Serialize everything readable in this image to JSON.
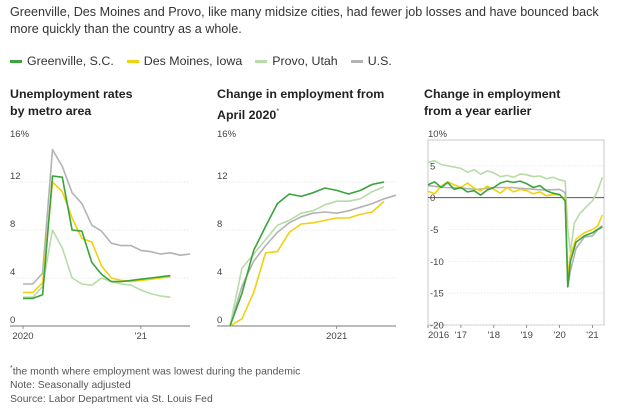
{
  "intro_text": "Greenville, Des Moines and Provo, like many midsize cities, had fewer job losses and have bounced back more quickly than the country as a whole.",
  "legend": [
    {
      "name": "Greenville, S.C.",
      "color": "#3aa33a"
    },
    {
      "name": "Des Moines, Iowa",
      "color": "#f2d10f"
    },
    {
      "name": "Provo, Utah",
      "color": "#b7dca7"
    },
    {
      "name": "U.S.",
      "color": "#b3b3b3"
    }
  ],
  "panels": {
    "p1": {
      "title_line1": "Unemployment rates",
      "title_line2": "by metro area"
    },
    "p2": {
      "title_line1": "Change in employment from",
      "title_line2": "April 2020",
      "title_mark": "*"
    },
    "p3": {
      "title_line1": "Change in employment",
      "title_line2": "from a year earlier"
    }
  },
  "footnotes": {
    "asterisk": "*",
    "note1": "the month where employment was lowest during the pandemic",
    "note2": "Note: Seasonally adjusted",
    "source": "Source: Labor Department via St. Louis Fed"
  },
  "chart_data": [
    {
      "type": "line",
      "title": "Unemployment rates by metro area",
      "ylim": [
        0,
        16
      ],
      "yticks": [
        0,
        4,
        8,
        12
      ],
      "ytick_top": "16%",
      "xlim": [
        0,
        17
      ],
      "xticks": [
        {
          "x": 0,
          "label": "2020"
        },
        {
          "x": 12,
          "label": "'21"
        }
      ],
      "series": [
        {
          "name": "U.S.",
          "color": "#b3b3b3",
          "x": [
            0,
            1,
            2,
            3,
            4,
            5,
            6,
            7,
            8,
            9,
            10,
            11,
            12,
            13,
            14,
            15,
            16,
            17
          ],
          "values": [
            3.5,
            3.5,
            4.4,
            14.7,
            13.3,
            11.1,
            10.2,
            8.4,
            7.9,
            6.9,
            6.7,
            6.7,
            6.3,
            6.2,
            6.0,
            6.1,
            5.9,
            6.0
          ]
        },
        {
          "name": "Provo, Utah",
          "color": "#b7dca7",
          "x": [
            0,
            1,
            2,
            3,
            4,
            5,
            6,
            7,
            8,
            9,
            10,
            11,
            12,
            13,
            14,
            15
          ],
          "values": [
            2.4,
            2.4,
            3.3,
            8.0,
            6.5,
            4.0,
            3.5,
            3.4,
            4.0,
            3.7,
            3.5,
            3.4,
            3.0,
            2.7,
            2.5,
            2.4
          ]
        },
        {
          "name": "Des Moines, Iowa",
          "color": "#f2d10f",
          "x": [
            0,
            1,
            2,
            3,
            4,
            5,
            6,
            7,
            8,
            9,
            10,
            11,
            12,
            13,
            14,
            15
          ],
          "values": [
            2.8,
            2.8,
            3.6,
            12.0,
            11.2,
            9.0,
            7.3,
            7.0,
            5.0,
            4.0,
            3.8,
            3.7,
            3.8,
            3.9,
            4.0,
            4.1
          ]
        },
        {
          "name": "Greenville, S.C.",
          "color": "#3aa33a",
          "x": [
            0,
            1,
            2,
            3,
            4,
            5,
            6,
            7,
            8,
            9,
            10,
            11,
            12,
            13,
            14,
            15
          ],
          "values": [
            2.3,
            2.3,
            2.6,
            12.5,
            12.4,
            8.0,
            7.9,
            5.3,
            4.3,
            3.7,
            3.7,
            3.8,
            3.9,
            4.0,
            4.1,
            4.2
          ]
        }
      ]
    },
    {
      "type": "line",
      "title": "Change in employment from April 2020*",
      "ylim": [
        0,
        16
      ],
      "yticks": [
        0,
        4,
        8,
        12
      ],
      "ytick_top": "16%",
      "xlim": [
        0,
        14
      ],
      "xticks": [
        {
          "x": 9,
          "label": "2021"
        }
      ],
      "series": [
        {
          "name": "U.S.",
          "color": "#b3b3b3",
          "x": [
            0,
            1,
            2,
            3,
            4,
            5,
            6,
            7,
            8,
            9,
            10,
            11,
            12,
            13,
            14
          ],
          "values": [
            0,
            3.3,
            5.4,
            6.7,
            7.8,
            8.6,
            9.1,
            9.4,
            9.5,
            9.4,
            9.6,
            9.9,
            10.2,
            10.6,
            10.9
          ]
        },
        {
          "name": "Provo, Utah",
          "color": "#b7dca7",
          "x": [
            0,
            1,
            2,
            3,
            4,
            5,
            6,
            7,
            8,
            9,
            10,
            11,
            12,
            13
          ],
          "values": [
            0,
            4.8,
            6.0,
            7.2,
            8.4,
            8.8,
            9.4,
            9.6,
            10.1,
            10.4,
            10.4,
            10.6,
            11.2,
            11.6
          ]
        },
        {
          "name": "Des Moines, Iowa",
          "color": "#f2d10f",
          "x": [
            0,
            1,
            2,
            3,
            4,
            5,
            6,
            7,
            8,
            9,
            10,
            11,
            12,
            13
          ],
          "values": [
            0,
            0.6,
            2.8,
            6.1,
            6.2,
            7.8,
            8.5,
            8.6,
            8.8,
            9.0,
            9.0,
            9.3,
            9.5,
            10.4
          ]
        },
        {
          "name": "Greenville, S.C.",
          "color": "#3aa33a",
          "x": [
            0,
            1,
            2,
            3,
            4,
            5,
            6,
            7,
            8,
            9,
            10,
            11,
            12,
            13
          ],
          "values": [
            0,
            2.7,
            6.3,
            8.3,
            10.2,
            11.0,
            10.8,
            11.1,
            11.5,
            11.3,
            11.0,
            11.3,
            11.8,
            12.0
          ]
        }
      ]
    },
    {
      "type": "line",
      "title": "Change in employment from a year earlier",
      "ylim": [
        -20,
        10
      ],
      "yticks": [
        -20,
        -15,
        -10,
        -5,
        0,
        5
      ],
      "ytick_top": "10%",
      "xlim": [
        2016,
        2021.35
      ],
      "xticks": [
        {
          "x": 2016,
          "label": "2016"
        },
        {
          "x": 2017,
          "label": "'17"
        },
        {
          "x": 2018,
          "label": "'18"
        },
        {
          "x": 2019,
          "label": "'19"
        },
        {
          "x": 2020,
          "label": "'20"
        },
        {
          "x": 2021,
          "label": "'21"
        }
      ],
      "series": [
        {
          "name": "Provo, Utah",
          "color": "#b7dca7",
          "x": [
            2016,
            2016.2,
            2016.4,
            2016.6,
            2016.8,
            2017,
            2017.2,
            2017.4,
            2017.6,
            2017.8,
            2018,
            2018.2,
            2018.4,
            2018.6,
            2018.8,
            2019,
            2019.2,
            2019.4,
            2019.6,
            2019.8,
            2020,
            2020.17,
            2020.25,
            2020.33,
            2020.45,
            2020.6,
            2020.8,
            2021,
            2021.15,
            2021.3
          ],
          "values": [
            5.5,
            5.8,
            5.2,
            5.0,
            4.8,
            4.6,
            4.0,
            4.4,
            3.7,
            4.2,
            3.9,
            3.3,
            3.5,
            3.2,
            3.7,
            3.6,
            3.3,
            3.4,
            3.0,
            3.2,
            2.8,
            2.6,
            -5.0,
            -8.5,
            -4.0,
            -2.6,
            -1.5,
            -0.5,
            1.0,
            3.2
          ]
        },
        {
          "name": "U.S.",
          "color": "#b3b3b3",
          "x": [
            2016,
            2016.5,
            2017,
            2017.5,
            2018,
            2018.5,
            2019,
            2019.5,
            2020,
            2020.17,
            2020.25,
            2020.33,
            2020.5,
            2020.75,
            2021,
            2021.2,
            2021.3
          ],
          "values": [
            1.9,
            1.6,
            1.5,
            1.3,
            1.6,
            1.6,
            1.4,
            1.2,
            1.3,
            0.8,
            -14.0,
            -11.5,
            -8.0,
            -6.2,
            -6.0,
            -4.8,
            -4.4
          ]
        },
        {
          "name": "Des Moines, Iowa",
          "color": "#f2d10f",
          "x": [
            2016,
            2016.2,
            2016.4,
            2016.6,
            2016.8,
            2017,
            2017.2,
            2017.4,
            2017.6,
            2017.8,
            2018,
            2018.2,
            2018.4,
            2018.6,
            2018.8,
            2019,
            2019.2,
            2019.4,
            2019.6,
            2019.8,
            2020,
            2020.17,
            2020.25,
            2020.33,
            2020.5,
            2020.75,
            2021,
            2021.15,
            2021.3
          ],
          "values": [
            1.0,
            0.6,
            1.8,
            2.5,
            2.0,
            1.6,
            2.3,
            1.5,
            1.1,
            1.8,
            1.3,
            0.7,
            1.6,
            0.9,
            1.3,
            1.1,
            0.6,
            0.9,
            0.3,
            0.5,
            0.4,
            -0.2,
            -12.5,
            -9.0,
            -6.5,
            -5.5,
            -5.0,
            -4.5,
            -2.7
          ]
        },
        {
          "name": "Greenville, S.C.",
          "color": "#3aa33a",
          "x": [
            2016,
            2016.2,
            2016.4,
            2016.6,
            2016.8,
            2017,
            2017.2,
            2017.4,
            2017.6,
            2017.8,
            2018,
            2018.2,
            2018.4,
            2018.6,
            2018.8,
            2019,
            2019.2,
            2019.4,
            2019.6,
            2019.8,
            2020,
            2020.17,
            2020.25,
            2020.33,
            2020.5,
            2020.75,
            2021,
            2021.15,
            2021.3
          ],
          "values": [
            2.0,
            2.5,
            1.6,
            2.4,
            1.3,
            1.6,
            0.9,
            1.1,
            0.4,
            1.2,
            1.6,
            2.3,
            2.6,
            2.4,
            2.6,
            2.2,
            1.6,
            1.9,
            1.1,
            0.7,
            0.5,
            -0.5,
            -14.0,
            -10.0,
            -7.0,
            -6.0,
            -5.5,
            -5.0,
            -4.6
          ]
        }
      ]
    }
  ]
}
